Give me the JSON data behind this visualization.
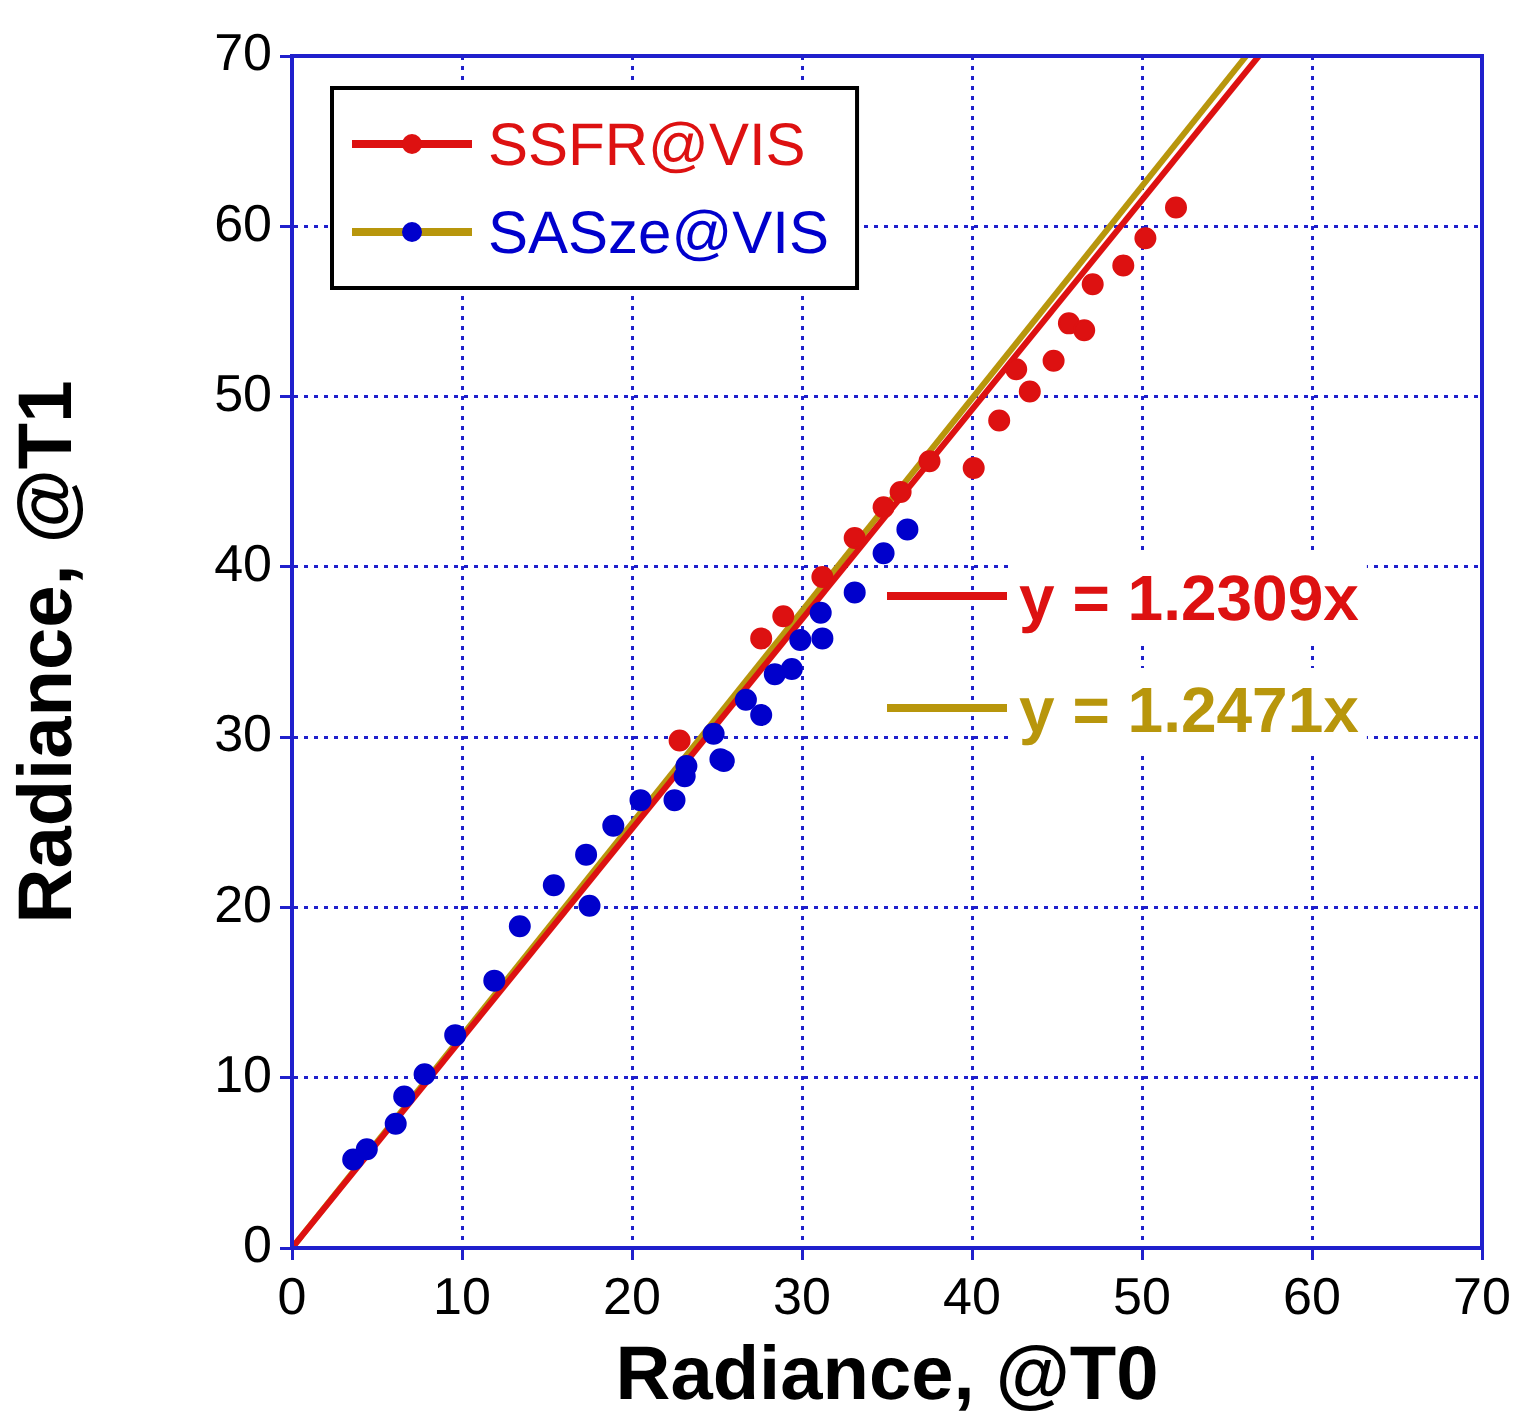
{
  "chart_data": {
    "type": "scatter",
    "xlabel": "Radiance, @T0",
    "ylabel": "Radiance, @T1",
    "xlim": [
      0,
      70
    ],
    "ylim": [
      0,
      70
    ],
    "xticks": [
      0,
      10,
      20,
      30,
      40,
      50,
      60,
      70
    ],
    "yticks": [
      0,
      10,
      20,
      30,
      40,
      50,
      60,
      70
    ],
    "grid": true,
    "legend": "top left",
    "marker": "circle",
    "annotations": [
      "y = 1.2309x",
      "y = 1.2471x"
    ],
    "series": [
      {
        "name": "SSFR@VIS",
        "color": "#dd1111",
        "x": [
          22.8,
          27.6,
          28.9,
          31.2,
          33.1,
          34.8,
          35.8,
          37.5,
          40.1,
          41.6,
          42.6,
          43.4,
          44.8,
          45.7,
          46.6,
          47.1,
          48.9,
          50.2,
          52.0
        ],
        "values": [
          29.8,
          35.8,
          37.1,
          39.4,
          41.7,
          43.5,
          44.4,
          46.2,
          45.8,
          48.6,
          51.6,
          50.3,
          52.1,
          54.3,
          53.9,
          56.6,
          57.7,
          59.3,
          61.1
        ]
      },
      {
        "name": "SASze@VIS",
        "color": "#0000cc",
        "x": [
          3.6,
          4.4,
          6.1,
          6.6,
          7.8,
          9.6,
          11.9,
          13.4,
          15.4,
          17.5,
          17.3,
          18.9,
          20.5,
          22.5,
          23.2,
          23.1,
          25.2,
          24.8,
          25.4,
          26.7,
          27.6,
          28.4,
          29.4,
          29.9,
          31.1,
          31.2,
          33.1,
          34.8,
          36.2
        ],
        "values": [
          5.2,
          5.8,
          7.3,
          8.9,
          10.2,
          12.5,
          15.7,
          18.9,
          21.3,
          20.1,
          23.1,
          24.8,
          26.3,
          26.3,
          28.3,
          27.7,
          28.7,
          30.2,
          28.6,
          32.2,
          31.3,
          33.7,
          34.0,
          35.7,
          37.3,
          35.8,
          38.5,
          40.8,
          42.2
        ]
      },
      {
        "type": "line",
        "marker": "none",
        "color": "#dd1111",
        "x": [
          0,
          56.87
        ],
        "values": [
          0,
          70
        ]
      },
      {
        "type": "line",
        "marker": "none",
        "color": "#b8960c",
        "x": [
          0,
          56.13
        ],
        "values": [
          0,
          70
        ]
      }
    ]
  }
}
